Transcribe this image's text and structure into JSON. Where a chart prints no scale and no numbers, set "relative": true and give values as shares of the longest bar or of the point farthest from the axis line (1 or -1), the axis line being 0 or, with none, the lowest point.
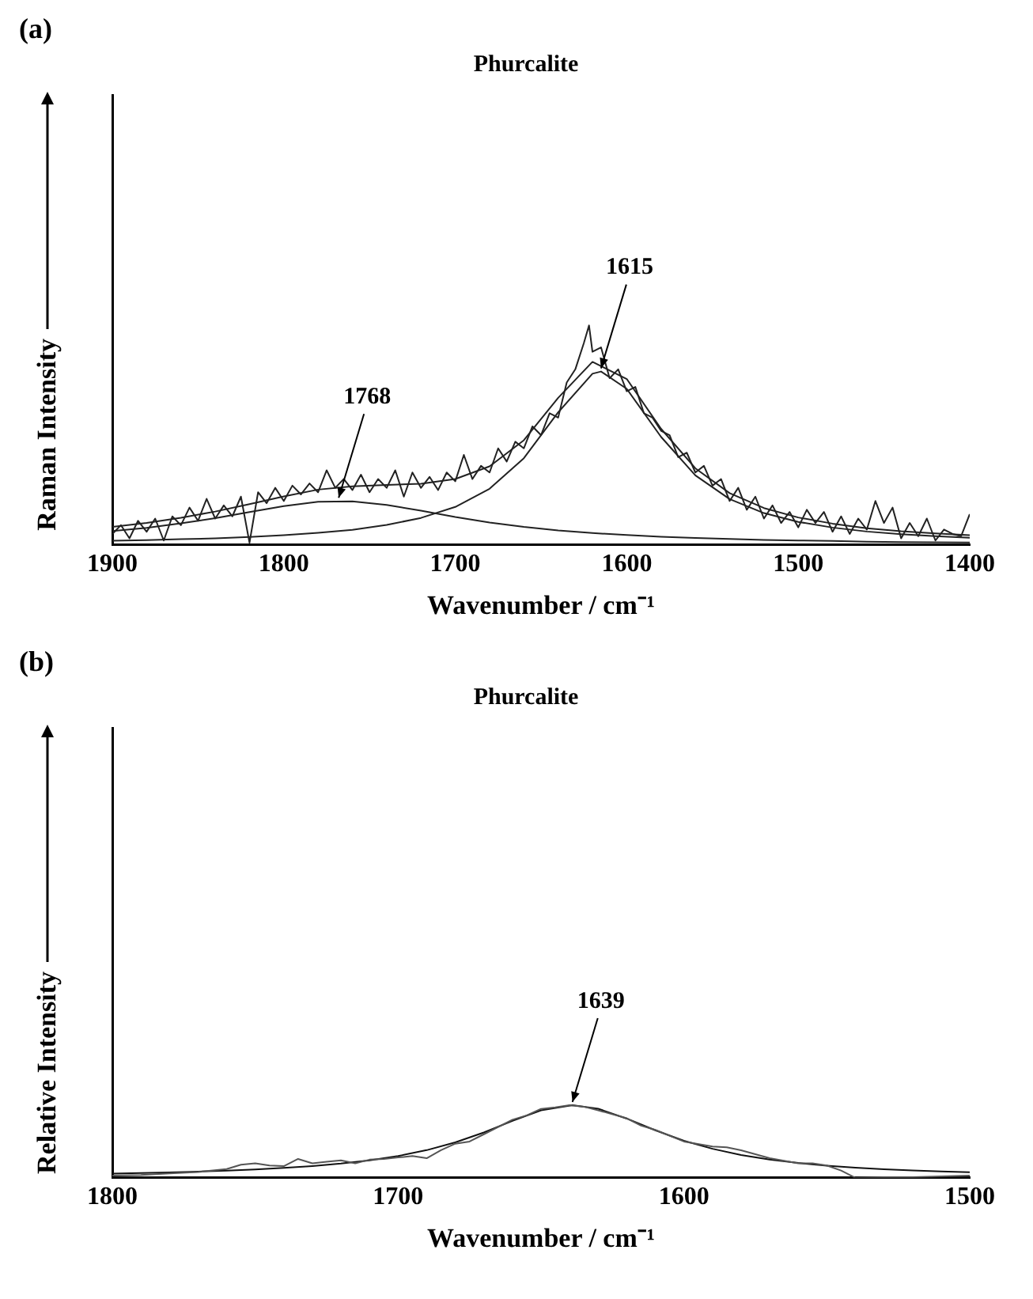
{
  "chart_data": [
    {
      "type": "line",
      "title": "Phurcalite",
      "xlabel": "Wavenumber / cm⁻¹",
      "ylabel": "Raman Intensity",
      "relative": true,
      "marker": "none",
      "xlim": [
        1900,
        1400
      ],
      "xticks": [
        1900,
        1800,
        1700,
        1600,
        1500,
        1400
      ],
      "annotations": [
        "(a)",
        {
          "text": "1768",
          "x": 1768,
          "y": 0.2
        },
        {
          "text": "1615",
          "x": 1615,
          "y": 0.79
        }
      ],
      "series": [
        {
          "color": "#222222",
          "x": [
            1900,
            1895,
            1890,
            1885,
            1880,
            1875,
            1870,
            1865,
            1860,
            1855,
            1850,
            1845,
            1840,
            1835,
            1830,
            1825,
            1820,
            1815,
            1810,
            1805,
            1800,
            1795,
            1790,
            1785,
            1780,
            1775,
            1770,
            1765,
            1760,
            1755,
            1750,
            1745,
            1740,
            1735,
            1730,
            1725,
            1720,
            1715,
            1710,
            1705,
            1700,
            1695,
            1690,
            1685,
            1680,
            1675,
            1670,
            1665,
            1660,
            1655,
            1650,
            1645,
            1640,
            1635,
            1630,
            1625,
            1622,
            1620,
            1615,
            1610,
            1605,
            1600,
            1595,
            1590,
            1585,
            1580,
            1575,
            1570,
            1565,
            1560,
            1555,
            1550,
            1545,
            1540,
            1535,
            1530,
            1525,
            1520,
            1515,
            1510,
            1505,
            1500,
            1495,
            1490,
            1485,
            1480,
            1475,
            1470,
            1465,
            1460,
            1455,
            1450,
            1445,
            1440,
            1435,
            1430,
            1425,
            1420,
            1415,
            1410,
            1405,
            1400
          ],
          "values": [
            0.05,
            0.09,
            0.03,
            0.11,
            0.06,
            0.12,
            0.02,
            0.13,
            0.09,
            0.17,
            0.11,
            0.21,
            0.12,
            0.18,
            0.13,
            0.22,
            0.01,
            0.24,
            0.19,
            0.26,
            0.2,
            0.27,
            0.23,
            0.28,
            0.24,
            0.34,
            0.26,
            0.3,
            0.25,
            0.32,
            0.24,
            0.3,
            0.26,
            0.34,
            0.22,
            0.33,
            0.26,
            0.31,
            0.25,
            0.33,
            0.29,
            0.41,
            0.3,
            0.36,
            0.33,
            0.44,
            0.38,
            0.47,
            0.44,
            0.54,
            0.5,
            0.6,
            0.58,
            0.74,
            0.8,
            0.92,
            1.0,
            0.88,
            0.9,
            0.76,
            0.8,
            0.7,
            0.72,
            0.6,
            0.58,
            0.52,
            0.5,
            0.4,
            0.42,
            0.33,
            0.36,
            0.27,
            0.3,
            0.2,
            0.26,
            0.16,
            0.22,
            0.12,
            0.18,
            0.1,
            0.15,
            0.08,
            0.16,
            0.1,
            0.15,
            0.06,
            0.13,
            0.05,
            0.12,
            0.07,
            0.2,
            0.1,
            0.17,
            0.03,
            0.1,
            0.04,
            0.12,
            0.02,
            0.07,
            0.05,
            0.04,
            0.14
          ]
        },
        {
          "color": "#222222",
          "x": [
            1900,
            1880,
            1860,
            1840,
            1820,
            1800,
            1780,
            1760,
            1740,
            1720,
            1700,
            1680,
            1660,
            1640,
            1620,
            1600,
            1580,
            1560,
            1540,
            1520,
            1500,
            1480,
            1460,
            1440,
            1420,
            1400
          ],
          "values": [
            0.082,
            0.1,
            0.124,
            0.152,
            0.186,
            0.221,
            0.252,
            0.267,
            0.273,
            0.279,
            0.3,
            0.358,
            0.477,
            0.67,
            0.834,
            0.756,
            0.529,
            0.349,
            0.236,
            0.168,
            0.125,
            0.097,
            0.076,
            0.062,
            0.052,
            0.044
          ]
        },
        {
          "color": "#222222",
          "x": [
            1900,
            1880,
            1860,
            1840,
            1820,
            1800,
            1780,
            1760,
            1740,
            1720,
            1700,
            1680,
            1660,
            1640,
            1620,
            1600,
            1580,
            1560,
            1540,
            1520,
            1500,
            1480,
            1460,
            1440,
            1420,
            1400
          ],
          "values": [
            0.063,
            0.078,
            0.098,
            0.122,
            0.15,
            0.177,
            0.197,
            0.198,
            0.182,
            0.156,
            0.127,
            0.102,
            0.082,
            0.066,
            0.054,
            0.045,
            0.037,
            0.032,
            0.027,
            0.023,
            0.02,
            0.018,
            0.015,
            0.013,
            0.012,
            0.011
          ]
        },
        {
          "color": "#222222",
          "x": [
            1900,
            1880,
            1860,
            1840,
            1820,
            1800,
            1780,
            1760,
            1740,
            1720,
            1700,
            1680,
            1660,
            1640,
            1620,
            1615,
            1600,
            1580,
            1560,
            1540,
            1520,
            1500,
            1480,
            1460,
            1440,
            1420,
            1400
          ],
          "values": [
            0.019,
            0.022,
            0.026,
            0.03,
            0.036,
            0.044,
            0.055,
            0.069,
            0.091,
            0.123,
            0.173,
            0.256,
            0.395,
            0.604,
            0.78,
            0.79,
            0.711,
            0.492,
            0.317,
            0.209,
            0.145,
            0.105,
            0.079,
            0.061,
            0.049,
            0.04,
            0.033
          ]
        }
      ]
    },
    {
      "type": "line",
      "title": "Phurcalite",
      "xlabel": "Wavenumber / cm⁻¹",
      "ylabel": "Relative Intensity",
      "relative": true,
      "marker": "none",
      "xlim": [
        1800,
        1500
      ],
      "xticks": [
        1800,
        1700,
        1600,
        1500
      ],
      "annotations": [
        "(b)",
        {
          "text": "1639",
          "x": 1639,
          "y": 1.0
        }
      ],
      "series": [
        {
          "color": "#555555",
          "x": [
            1800,
            1790,
            1780,
            1770,
            1760,
            1755,
            1750,
            1745,
            1740,
            1735,
            1730,
            1725,
            1720,
            1715,
            1710,
            1705,
            1700,
            1695,
            1690,
            1685,
            1680,
            1675,
            1670,
            1660,
            1655,
            1650,
            1645,
            1640,
            1635,
            1630,
            1620,
            1615,
            1610,
            1600,
            1590,
            1585,
            1580,
            1570,
            1560,
            1555,
            1550,
            1545,
            1540,
            1530,
            1520,
            1500
          ],
          "values": [
            0.03,
            0.04,
            0.06,
            0.08,
            0.12,
            0.18,
            0.2,
            0.17,
            0.16,
            0.26,
            0.2,
            0.22,
            0.24,
            0.2,
            0.25,
            0.26,
            0.28,
            0.3,
            0.27,
            0.38,
            0.47,
            0.5,
            0.6,
            0.8,
            0.86,
            0.95,
            0.97,
            1.0,
            0.98,
            0.93,
            0.82,
            0.72,
            0.66,
            0.5,
            0.43,
            0.42,
            0.38,
            0.27,
            0.2,
            0.2,
            0.17,
            0.1,
            0.0,
            0.01,
            0.01,
            0.03
          ]
        },
        {
          "color": "#111111",
          "x": [
            1800,
            1790,
            1780,
            1770,
            1760,
            1750,
            1740,
            1730,
            1720,
            1710,
            1700,
            1690,
            1680,
            1670,
            1660,
            1650,
            1639,
            1630,
            1620,
            1610,
            1600,
            1590,
            1580,
            1570,
            1560,
            1550,
            1540,
            1530,
            1520,
            1510,
            1500
          ],
          "values": [
            0.058,
            0.066,
            0.075,
            0.085,
            0.099,
            0.115,
            0.136,
            0.162,
            0.196,
            0.241,
            0.3,
            0.381,
            0.488,
            0.625,
            0.784,
            0.93,
            1.0,
            0.952,
            0.816,
            0.655,
            0.51,
            0.4,
            0.315,
            0.251,
            0.204,
            0.168,
            0.14,
            0.119,
            0.102,
            0.088,
            0.076
          ]
        }
      ]
    }
  ]
}
